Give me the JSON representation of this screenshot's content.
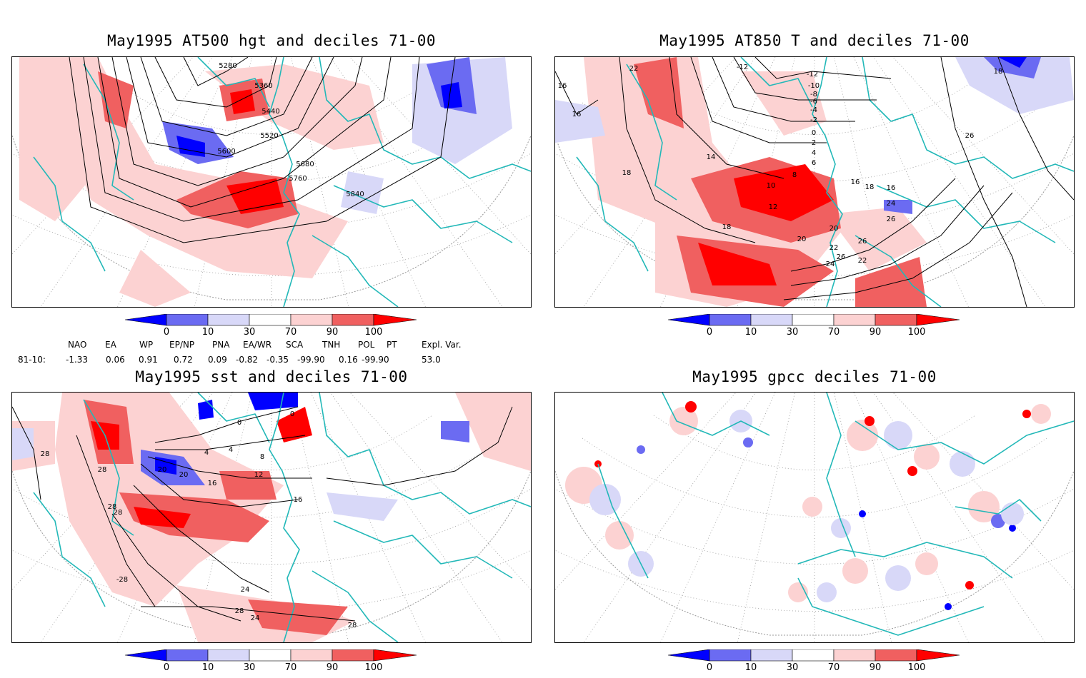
{
  "panels": [
    {
      "id": "p1",
      "title": "May1995 AT500 hgt and deciles 71-00",
      "contour_labels": [
        "5280",
        "5360",
        "5440",
        "5520",
        "5600",
        "5680",
        "5760",
        "5840"
      ]
    },
    {
      "id": "p2",
      "title": "May1995 AT850 T and deciles 71-00",
      "contour_labels": [
        "-12",
        "-12",
        "-10",
        "-8",
        "-6",
        "-4",
        "-2",
        "0",
        "2",
        "4",
        "6",
        "8",
        "10",
        "12",
        "14",
        "16",
        "16",
        "18",
        "18",
        "18",
        "20",
        "20",
        "22",
        "22",
        "24",
        "24",
        "26",
        "26",
        "26",
        "26",
        "18",
        "22",
        "16",
        "16"
      ]
    },
    {
      "id": "p3",
      "title": "May1995 sst and deciles 71-00",
      "contour_labels": [
        "0",
        "0",
        "4",
        "4",
        "8",
        "12",
        "16",
        "20",
        "20",
        "16",
        "24",
        "24",
        "28",
        "28",
        "28",
        "28",
        "-28",
        "28",
        "28"
      ]
    },
    {
      "id": "p4",
      "title": "May1995 gpcc deciles 71-00",
      "contour_labels": []
    }
  ],
  "colorbar": {
    "tick_labels": [
      "0",
      "10",
      "30",
      "70",
      "90",
      "100"
    ],
    "colors": {
      "d0_10": "#0000ff",
      "d10_30": "#6b6bf2",
      "d30_50": "#d8d8f8",
      "d50_70": "#ffffff",
      "d70_90": "#fcd2d2",
      "d90_97": "#f06060",
      "d97_100": "#ff0000"
    }
  },
  "indices": {
    "headers": [
      "NAO",
      "EA",
      "WP",
      "EP/NP",
      "PNA",
      "EA/WR",
      "SCA",
      "TNH",
      "POL",
      "PT",
      "Expl. Var."
    ],
    "row_label": "81-10:",
    "values": [
      "-1.33",
      "0.06",
      "0.91",
      "0.72",
      "0.09",
      "-0.82",
      "-0.35",
      "-99.90",
      "0.16",
      "-99.90",
      "53.0"
    ]
  },
  "colors": {
    "coast": "#22b8b8",
    "grid": "#9a9a9a",
    "contour": "#000000"
  }
}
